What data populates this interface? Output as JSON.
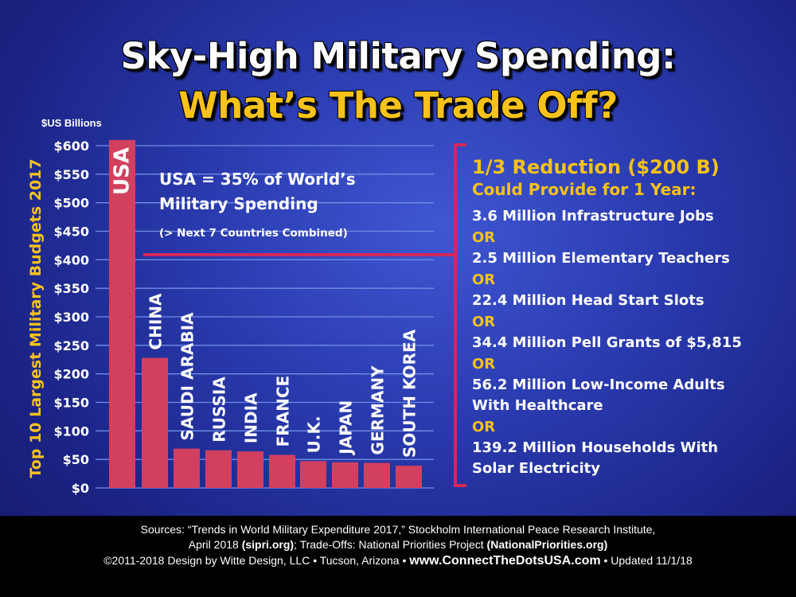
{
  "title": "Sky-High Military Spending:",
  "subtitle": "What’s The Trade Off?",
  "unit_label": "$US Billions",
  "colors": {
    "bar": "#d2405f",
    "accent": "#f7c21a",
    "bracket": "#d3285a",
    "grid": "#6f8ee6"
  },
  "chart_data": {
    "type": "bar",
    "ylabel": "Top 10 Largest Military Budgets 2017",
    "ylim": [
      0,
      600
    ],
    "yticks": [
      0,
      50,
      100,
      150,
      200,
      250,
      300,
      350,
      400,
      450,
      500,
      550,
      600
    ],
    "ytick_labels": [
      "$0",
      "$50",
      "$100",
      "$150",
      "$200",
      "$250",
      "$300",
      "$350",
      "$400",
      "$450",
      "$500",
      "$550",
      "$600"
    ],
    "grid": true,
    "categories": [
      "USA",
      "CHINA",
      "SAUDI ARABIA",
      "RUSSIA",
      "INDIA",
      "FRANCE",
      "U.K.",
      "JAPAN",
      "GERMANY",
      "SOUTH KOREA"
    ],
    "values": [
      610,
      228,
      69,
      66,
      64,
      58,
      47,
      45,
      44,
      39
    ]
  },
  "callout": {
    "line1": "USA = 35% of World’s",
    "line2": "Military Spending",
    "line3": "(> Next 7 Countries Combined)"
  },
  "tradeoff": {
    "heading1": "1/3 Reduction ($200 B)",
    "heading2": "Could Provide for 1 Year:",
    "or_label": "OR",
    "items": [
      [
        "3.6 Million Infrastructure Jobs"
      ],
      [
        "2.5 Million Elementary Teachers"
      ],
      [
        "22.4 Million Head Start Slots"
      ],
      [
        "34.4 Million Pell Grants of $5,815"
      ],
      [
        "56.2 Million Low-Income Adults",
        "With Healthcare"
      ],
      [
        "139.2 Million Households  With",
        "Solar Electricity"
      ]
    ]
  },
  "footer": {
    "l1": "Sources: “Trends in World Military Expenditure 2017,” Stockholm International Peace Research Institute,",
    "l2a": "April 2018 ",
    "l2b": "(sipri.org)",
    "l2c": "; Trade-Offs: National Priorities Project ",
    "l2d": "(NationalPriorities.org)",
    "l3a": "©2011-2018 Design by Witte Design, LLC • Tucson, Arizona • ",
    "l3b": "www.ConnectTheDotsUSA.com",
    "l3c": " •  Updated 11/1/18"
  }
}
